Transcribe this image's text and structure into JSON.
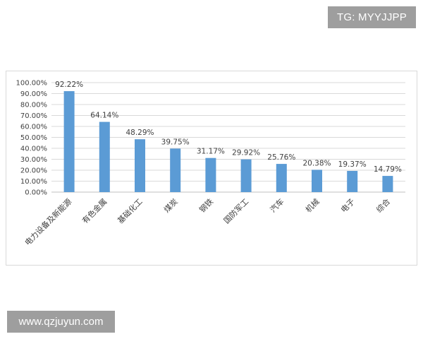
{
  "watermark_top": "TG: MYYJJPP",
  "watermark_bottom": "www.qzjuyun.com",
  "chart_data": {
    "type": "bar",
    "categories": [
      "电力设备及新能源",
      "有色金属",
      "基础化工",
      "煤炭",
      "钢铁",
      "国防军工",
      "汽车",
      "机械",
      "电子",
      "综合"
    ],
    "values": [
      92.22,
      64.14,
      48.29,
      39.75,
      31.17,
      29.92,
      25.76,
      20.38,
      19.37,
      14.79
    ],
    "data_labels": [
      "92.22%",
      "64.14%",
      "48.29%",
      "39.75%",
      "31.17%",
      "29.92%",
      "25.76%",
      "20.38%",
      "19.37%",
      "14.79%"
    ],
    "yticks": [
      "0.00%",
      "10.00%",
      "20.00%",
      "30.00%",
      "40.00%",
      "50.00%",
      "60.00%",
      "70.00%",
      "80.00%",
      "90.00%",
      "100.00%"
    ],
    "ylim": [
      0,
      100
    ],
    "grid": true,
    "legend": "none",
    "bar_color": "#5b9bd5"
  }
}
